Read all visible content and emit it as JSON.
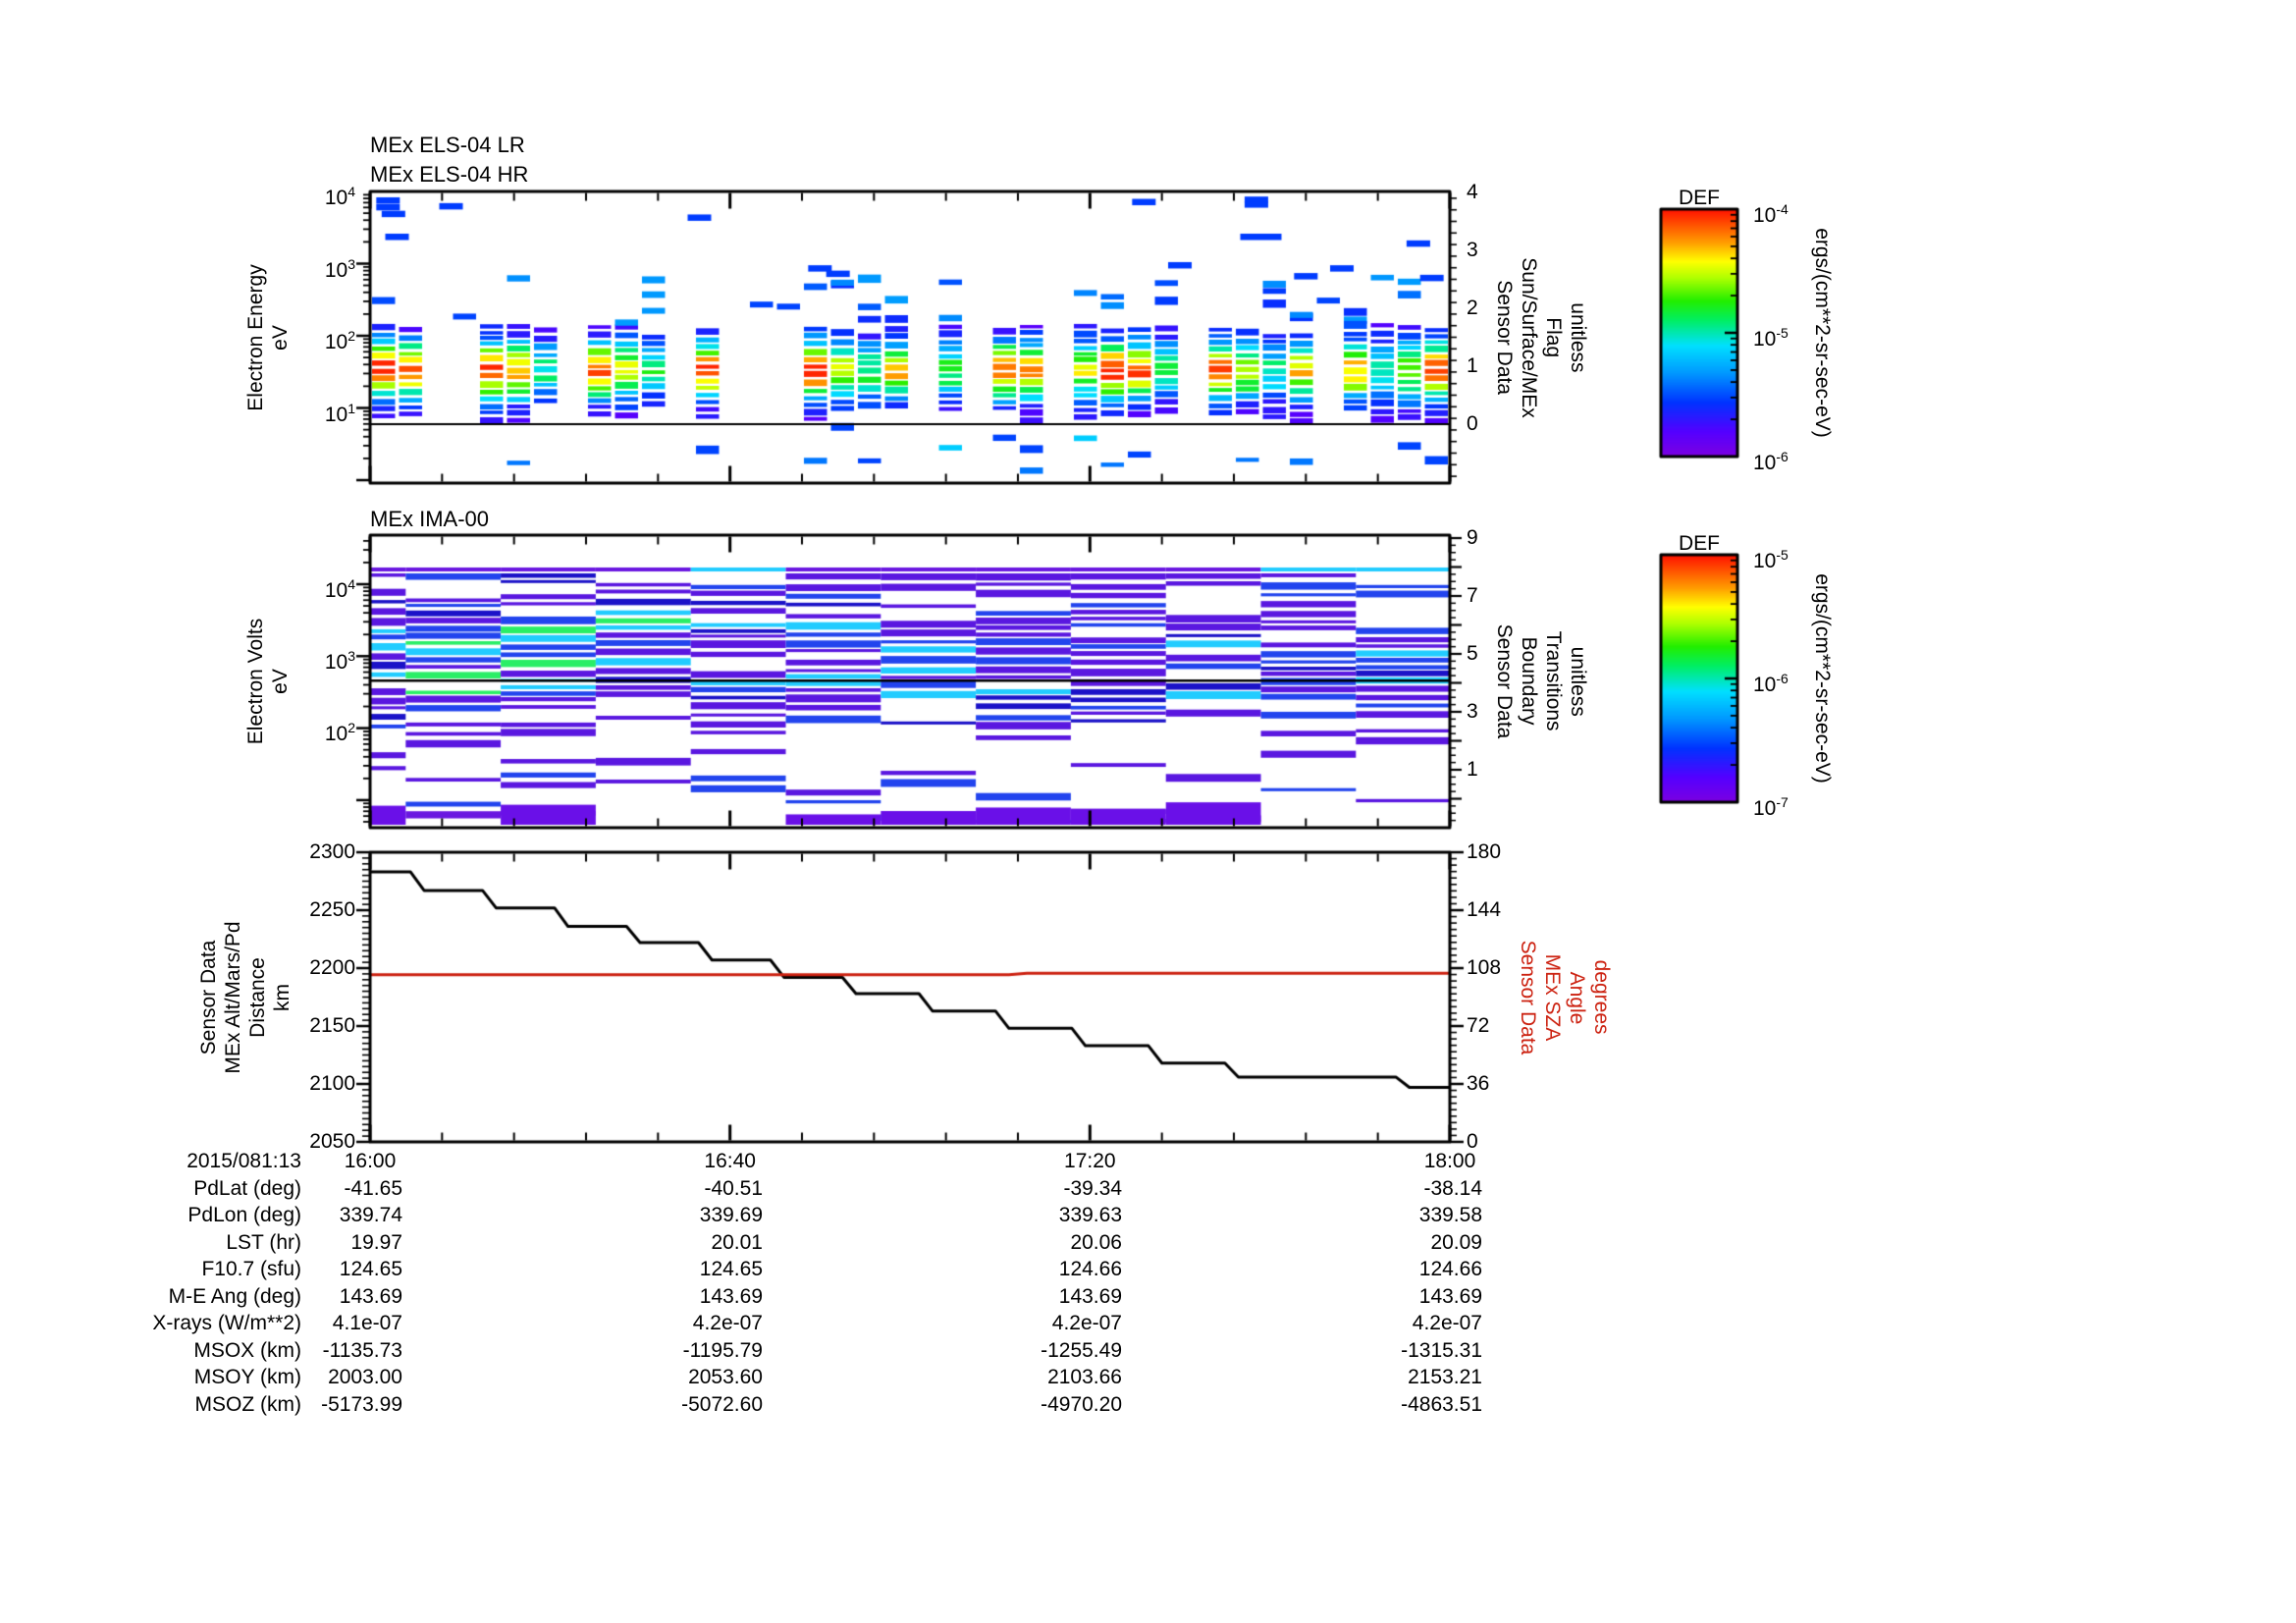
{
  "figure": {
    "background": "#ffffff",
    "accent_red": "#cc2211",
    "panels": {
      "els": {
        "titles": [
          "MEx ELS-04 LR",
          "MEx ELS-04 HR"
        ],
        "ylabel_lines": [
          "Electron Energy",
          "eV"
        ],
        "ytick_pows": [
          "10^4",
          "10^3",
          "10^2",
          "10^1"
        ],
        "right_ticks": [
          "4",
          "3",
          "2",
          "1",
          "0"
        ],
        "right_label_lines": [
          "Sensor Data",
          "Sun/Surface/MEx",
          "Flag",
          "unitless"
        ]
      },
      "ima": {
        "title": "MEx IMA-00",
        "ylabel_lines": [
          "Electron Volts",
          "eV"
        ],
        "ytick_pows": [
          "10^4",
          "10^3",
          "10^2"
        ],
        "right_ticks": [
          "9",
          "7",
          "5",
          "3",
          "1"
        ],
        "right_label_lines": [
          "Sensor Data",
          "Boundary",
          "Transitions",
          "unitless"
        ]
      },
      "alt": {
        "ylabel_lines": [
          "Sensor Data",
          "MEx Alt/Mars/Pd",
          "Distance",
          "km"
        ],
        "ytick_labels": [
          "2300",
          "2250",
          "2200",
          "2150",
          "2100",
          "2050"
        ],
        "right_ticks": [
          "180",
          "144",
          "108",
          "72",
          "36",
          "0"
        ],
        "right_label_lines": [
          "Sensor Data",
          "MEx SZA",
          "Angle",
          "degrees"
        ],
        "xtick_labels": [
          "16:00",
          "16:40",
          "17:20",
          "18:00"
        ]
      }
    },
    "colorbars": [
      {
        "title": "DEF",
        "tick_pows": [
          "10^-4",
          "10^-5",
          "10^-6"
        ],
        "units": "ergs/(cm**2-sr-sec-eV)"
      },
      {
        "title": "DEF",
        "tick_pows": [
          "10^-5",
          "10^-6",
          "10^-7"
        ],
        "units": "ergs/(cm**2-sr-sec-eV)"
      }
    ]
  },
  "table": {
    "date_label": "2015/081:13",
    "row_labels": [
      "PdLat (deg)",
      "PdLon (deg)",
      "LST (hr)",
      "F10.7 (sfu)",
      "M-E Ang (deg)",
      "X-rays (W/m**2)",
      "MSOX (km)",
      "MSOY (km)",
      "MSOZ (km)"
    ],
    "columns": [
      {
        "time": "16:00",
        "values": [
          "-41.65",
          "339.74",
          "19.97",
          "124.65",
          "143.69",
          "4.1e-07",
          "-1135.73",
          "2003.00",
          "-5173.99"
        ]
      },
      {
        "time": "16:40",
        "values": [
          "-40.51",
          "339.69",
          "20.01",
          "124.65",
          "143.69",
          "4.2e-07",
          "-1195.79",
          "2053.60",
          "-5072.60"
        ]
      },
      {
        "time": "17:20",
        "values": [
          "-39.34",
          "339.63",
          "20.06",
          "124.66",
          "143.69",
          "4.2e-07",
          "-1255.49",
          "2103.66",
          "-4970.20"
        ]
      },
      {
        "time": "18:00",
        "values": [
          "-38.14",
          "339.58",
          "20.09",
          "124.66",
          "143.69",
          "4.2e-07",
          "-1315.31",
          "2153.21",
          "-4863.51"
        ]
      }
    ]
  },
  "chart_data": [
    {
      "type": "heatmap",
      "id": "els-spectrogram",
      "title": "MEx ELS-04 LR / MEx ELS-04 HR",
      "x_axis": {
        "label": "time (2015/081:13)",
        "range": [
          "16:00",
          "18:00"
        ],
        "major_tick_min": 40,
        "minor_tick_min": 8
      },
      "y_axis": {
        "label": "Electron Energy (eV)",
        "scale": "log",
        "range": [
          0.9,
          10000
        ]
      },
      "z_axis": {
        "label": "DEF ergs/(cm**2-sr-sec-eV)",
        "scale": "log",
        "range": [
          1e-06,
          0.0001
        ]
      },
      "main_band": {
        "energy_range_ev": [
          8,
          150
        ],
        "peak_energy_ev": 32,
        "peak_flux_color": "red (~1e-4)"
      },
      "flag_line": {
        "name": "Sun/Surface/MEx Flag",
        "value": 0,
        "right_axis_range": [
          -1,
          4
        ]
      },
      "active_intervals_frac": [
        [
          0,
          0.062
        ],
        [
          0.088,
          0.175
        ],
        [
          0.19,
          0.28
        ],
        [
          0.295,
          0.335
        ],
        [
          0.405,
          0.5
        ],
        [
          0.52,
          0.625
        ],
        [
          0.655,
          0.75
        ],
        [
          0.78,
          0.875
        ],
        [
          0.9,
          0.995
        ]
      ],
      "high_energy_marks": [
        {
          "t_min": 2,
          "ev": 8300
        },
        {
          "t_min": 2,
          "ev": 6700
        },
        {
          "t_min": 2.6,
          "ev": 5400
        },
        {
          "t_min": 3,
          "ev": 2600
        },
        {
          "t_min": 9,
          "ev": 6900
        },
        {
          "t_min": 36.6,
          "ev": 4800
        },
        {
          "t_min": 50,
          "ev": 950
        },
        {
          "t_min": 52,
          "ev": 800
        },
        {
          "t_min": 86,
          "ev": 7900
        },
        {
          "t_min": 90,
          "ev": 1050
        },
        {
          "t_min": 98.5,
          "ev": 8500
        },
        {
          "t_min": 98.5,
          "ev": 7300
        },
        {
          "t_min": 99,
          "ev": 2600,
          "wide": true
        },
        {
          "t_min": 104,
          "ev": 740
        },
        {
          "t_min": 108,
          "ev": 950
        },
        {
          "t_min": 116.5,
          "ev": 2100
        },
        {
          "t_min": 118,
          "ev": 700
        }
      ],
      "seed": 9
    },
    {
      "type": "heatmap",
      "id": "ima-spectrogram",
      "title": "MEx IMA-00",
      "x_axis": {
        "label": "time (2015/081:13)",
        "range": [
          "16:00",
          "18:00"
        ]
      },
      "y_axis": {
        "label": "Electron Volts (eV)",
        "scale": "log",
        "range": [
          4.5,
          48000
        ]
      },
      "z_axis": {
        "label": "DEF ergs/(cm**2-sr-sec-eV)",
        "scale": "log",
        "range": [
          1e-07,
          1e-05
        ]
      },
      "column_edges_frac": [
        0,
        0.033,
        0.121,
        0.209,
        0.297,
        0.385,
        0.473,
        0.561,
        0.649,
        0.737,
        0.825,
        0.913,
        1.0
      ],
      "cyan_top_columns": [
        4,
        10,
        11
      ],
      "bright_band_ev": [
        300,
        3000
      ],
      "flag_line": {
        "name": "Boundary Transitions",
        "value": 4,
        "right_axis_range": [
          -1,
          9
        ]
      },
      "seed": 23
    },
    {
      "type": "line",
      "id": "alt-sza",
      "x_axis": {
        "label": "time (2015/081:13)",
        "range_min": [
          0,
          120
        ],
        "tick_labels": [
          "16:00",
          "16:40",
          "17:20",
          "18:00"
        ]
      },
      "left_axis": {
        "label": "Sensor Data MEx Alt/Mars/Pd Distance (km)",
        "range": [
          2050,
          2300
        ]
      },
      "right_axis": {
        "label": "Sensor Data MEx SZA Angle (degrees)",
        "range": [
          0,
          180
        ]
      },
      "series": [
        {
          "name": "MEx Alt/Mars/Pd Distance",
          "color": "#000000",
          "axis": "left",
          "points": [
            [
              0,
              2283
            ],
            [
              4.5,
              2283
            ],
            [
              6,
              2267
            ],
            [
              12.5,
              2267
            ],
            [
              14,
              2252
            ],
            [
              20.5,
              2252
            ],
            [
              22,
              2236
            ],
            [
              28.5,
              2236
            ],
            [
              30,
              2222
            ],
            [
              36.5,
              2222
            ],
            [
              38,
              2207
            ],
            [
              44.5,
              2207
            ],
            [
              46,
              2192
            ],
            [
              52.5,
              2192
            ],
            [
              54,
              2178
            ],
            [
              61,
              2178
            ],
            [
              62.5,
              2163
            ],
            [
              69.5,
              2163
            ],
            [
              71,
              2148
            ],
            [
              78,
              2148
            ],
            [
              79.5,
              2133
            ],
            [
              86.5,
              2133
            ],
            [
              88,
              2118
            ],
            [
              95,
              2118
            ],
            [
              96.5,
              2106
            ],
            [
              114,
              2106
            ],
            [
              115.5,
              2097
            ],
            [
              120,
              2097
            ]
          ]
        },
        {
          "name": "MEx SZA Angle",
          "color": "#cc2211",
          "axis": "right",
          "points": [
            [
              0,
              103.9
            ],
            [
              71,
              103.9
            ],
            [
              73,
              104.8
            ],
            [
              120,
              104.8
            ]
          ]
        }
      ]
    }
  ]
}
